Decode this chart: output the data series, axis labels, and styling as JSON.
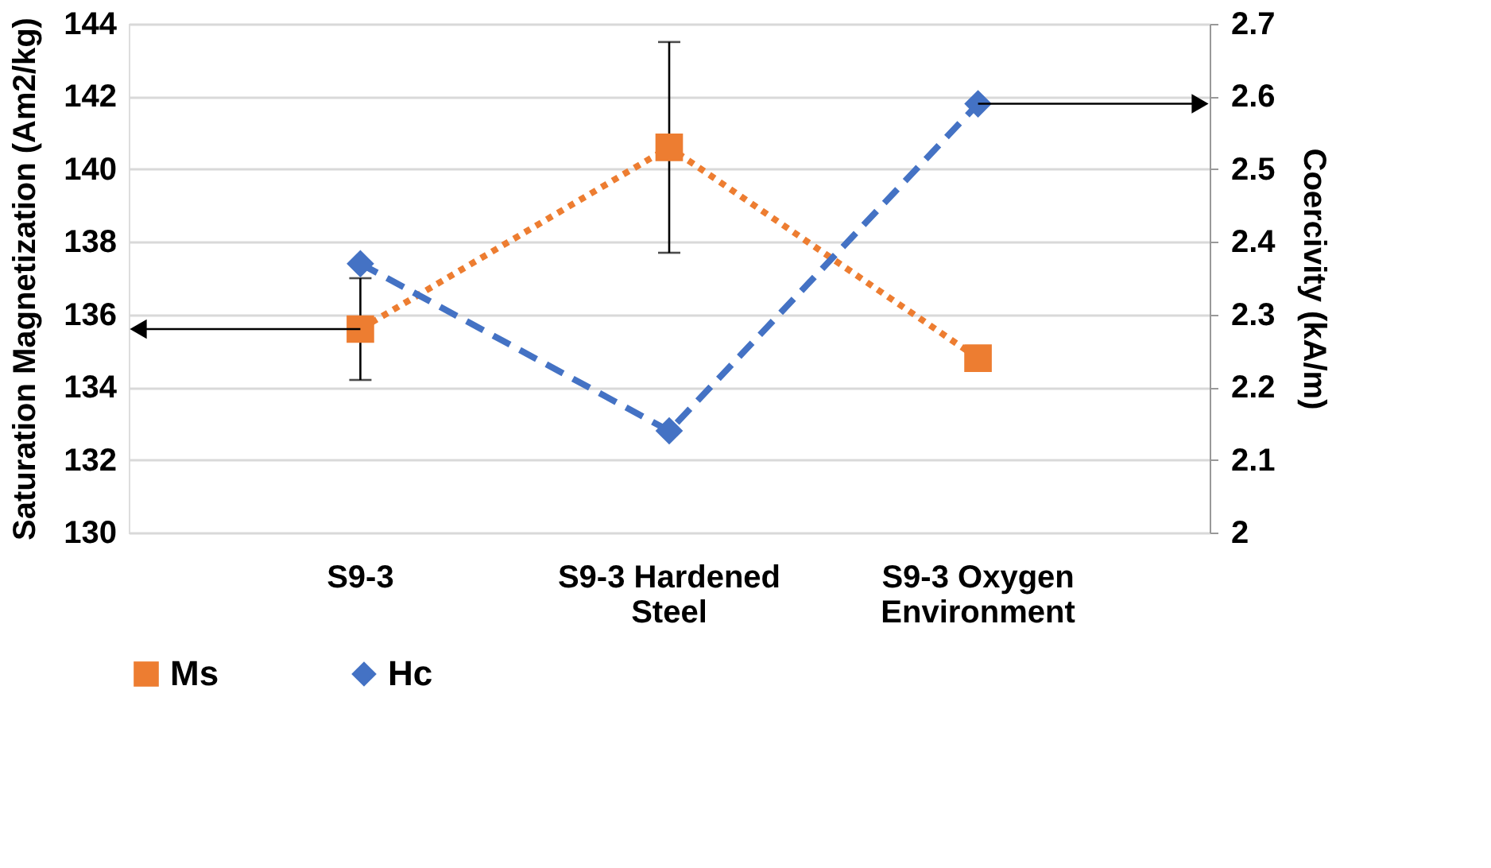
{
  "chart_data": {
    "type": "line",
    "categories": [
      "S9-3",
      "S9-3 Hardened Steel",
      "S9-3 Oxygen Environment"
    ],
    "ylabel": "Saturation Magnetization (Am2/kg)",
    "y2label": "Coercivity (kA/m)",
    "ylim": [
      130,
      144
    ],
    "yticks": [
      130,
      132,
      134,
      136,
      138,
      140,
      142,
      144
    ],
    "y2lim": [
      2,
      2.7
    ],
    "y2ticks": [
      {
        "value": 2,
        "label": "2"
      },
      2.1,
      2.2,
      2.3,
      2.4,
      2.5,
      2.6,
      2.7
    ],
    "grid": "y",
    "legend": "bottom",
    "series": [
      {
        "name": "Ms",
        "color": "#ed7d31",
        "marker": "square",
        "line_style": "dotted",
        "values": [
          135.6,
          140.6,
          134.8
        ],
        "errors": [
          [
            134.2,
            137.0
          ],
          [
            137.7,
            143.5
          ],
          null
        ]
      },
      {
        "name": "Hc",
        "color": "#4472c4",
        "marker": "diamond",
        "line_style": "dashed",
        "axis": "y2",
        "values": [
          2.37,
          2.14,
          2.59
        ]
      }
    ]
  }
}
